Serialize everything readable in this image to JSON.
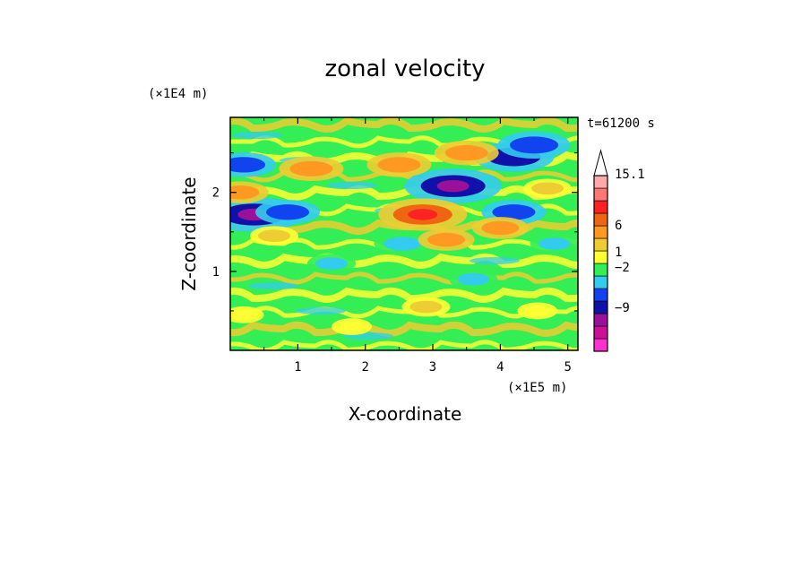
{
  "chart_data": {
    "type": "heatmap",
    "title": "zonal velocity",
    "xlabel": "X-coordinate",
    "ylabel": "Z-coordinate",
    "x_unit": "(×1E5 m)",
    "y_unit": "(×1E4 m)",
    "time_label": "t=61200 s",
    "xlim": [
      0,
      5.15
    ],
    "ylim": [
      0,
      2.95
    ],
    "x_ticks": [
      "1",
      "2",
      "3",
      "4",
      "5"
    ],
    "y_ticks": [
      "1",
      "2"
    ],
    "colorbar_labels": [
      "15.1",
      "6",
      "1",
      "−2",
      "−9"
    ],
    "colorbar_levels": [
      {
        "color": "#ff33cc"
      },
      {
        "color": "#cc1199"
      },
      {
        "color": "#991199"
      },
      {
        "color": "#1111aa"
      },
      {
        "color": "#1144ee"
      },
      {
        "color": "#33ccee"
      },
      {
        "color": "#33ee55"
      },
      {
        "color": "#ffff33"
      },
      {
        "color": "#eecc33"
      },
      {
        "color": "#ff9922"
      },
      {
        "color": "#ee6611"
      },
      {
        "color": "#ff2222"
      },
      {
        "color": "#ff7777"
      },
      {
        "color": "#ffaaaa"
      },
      {
        "color": "#ffffff"
      }
    ],
    "features": [
      {
        "x": 0.35,
        "z": 1.72,
        "value": -8
      },
      {
        "x": 3.3,
        "z": 2.08,
        "value": -8
      },
      {
        "x": 4.2,
        "z": 2.45,
        "value": -6
      },
      {
        "x": 0.2,
        "z": 2.35,
        "value": -4
      },
      {
        "x": 0.85,
        "z": 1.75,
        "value": -4
      },
      {
        "x": 4.5,
        "z": 2.6,
        "value": -5
      },
      {
        "x": 4.2,
        "z": 1.75,
        "value": -4
      },
      {
        "x": 2.55,
        "z": 1.35,
        "value": -3
      },
      {
        "x": 2.85,
        "z": 1.72,
        "value": 7
      },
      {
        "x": 2.5,
        "z": 2.35,
        "value": 4
      },
      {
        "x": 1.2,
        "z": 2.3,
        "value": 4
      },
      {
        "x": 0.15,
        "z": 2.0,
        "value": 3
      },
      {
        "x": 4.0,
        "z": 1.55,
        "value": 3
      },
      {
        "x": 3.2,
        "z": 1.4,
        "value": 3
      },
      {
        "x": 0.65,
        "z": 1.45,
        "value": 2
      },
      {
        "x": 3.5,
        "z": 2.5,
        "value": 4
      },
      {
        "x": 4.7,
        "z": 2.05,
        "value": 2
      },
      {
        "x": 2.9,
        "z": 0.55,
        "value": 2
      },
      {
        "x": 1.8,
        "z": 0.3,
        "value": 1
      },
      {
        "x": 0.2,
        "z": 0.45,
        "value": 1
      },
      {
        "x": 4.55,
        "z": 0.5,
        "value": 1
      },
      {
        "x": 4.8,
        "z": 1.35,
        "value": -2
      },
      {
        "x": 1.5,
        "z": 1.1,
        "value": -2
      },
      {
        "x": 3.6,
        "z": 0.9,
        "value": -2
      }
    ]
  }
}
